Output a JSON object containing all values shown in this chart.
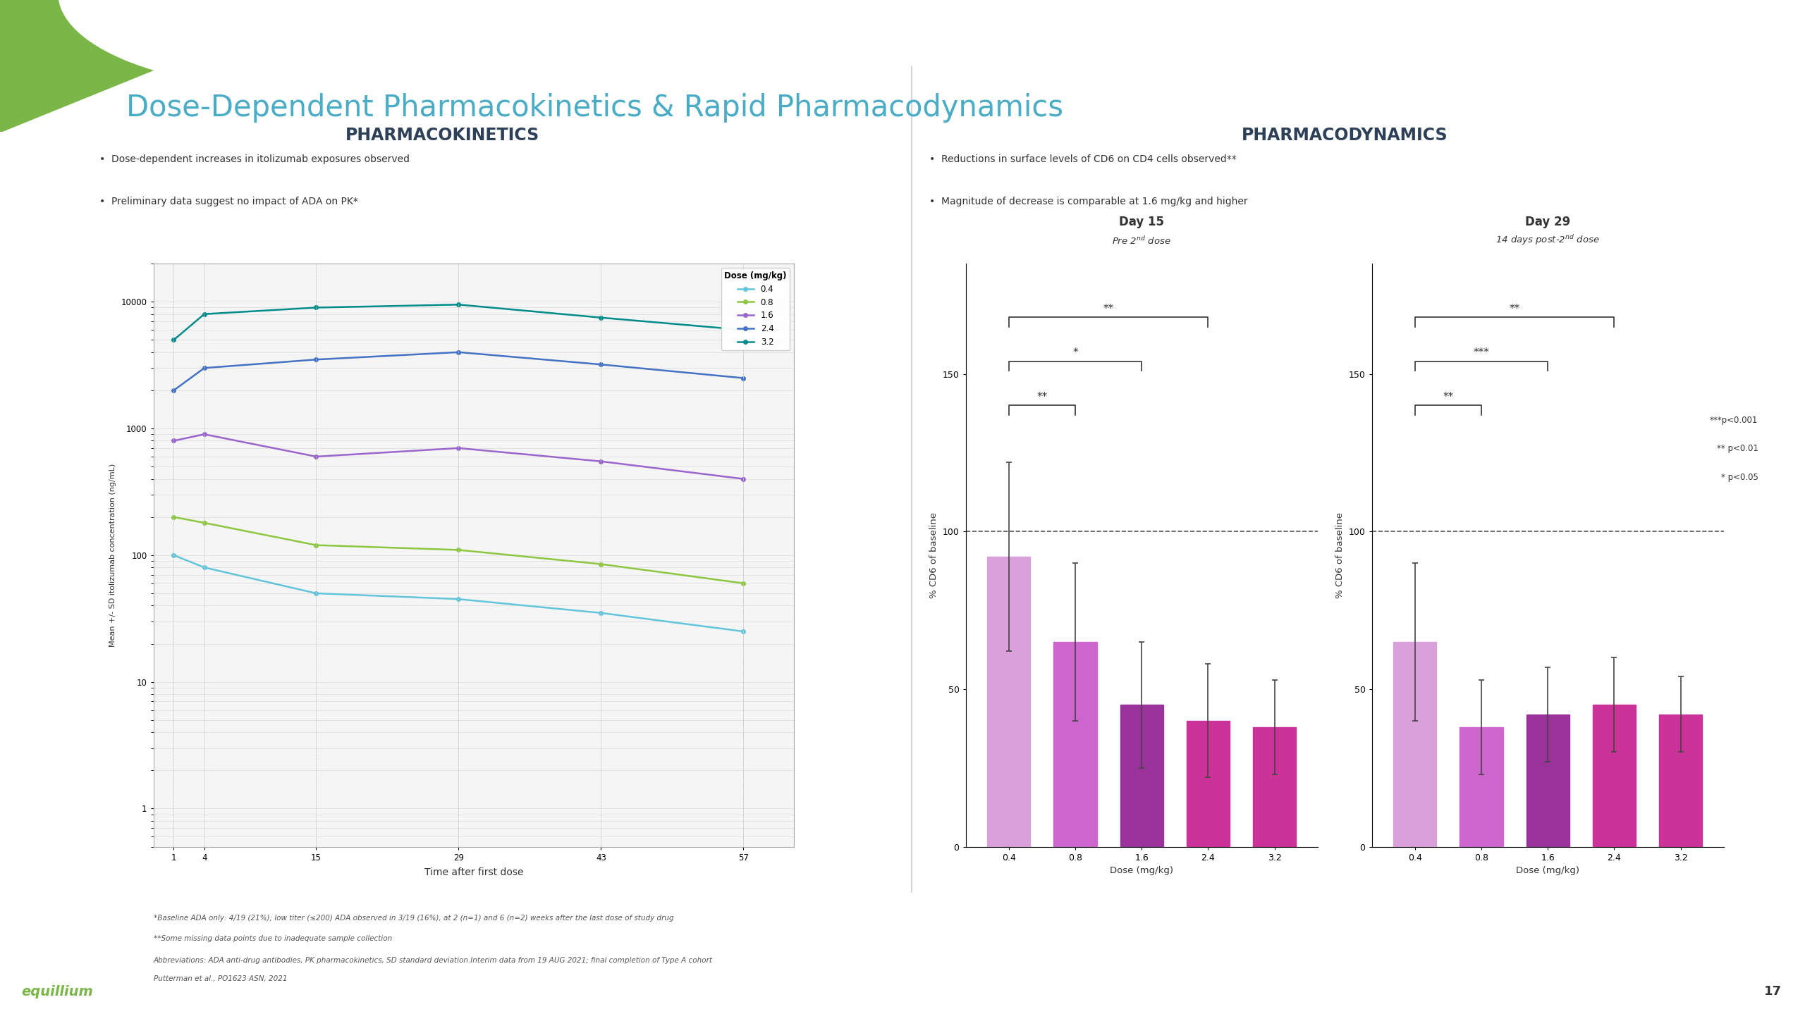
{
  "title": "Dose-Dependent Pharmacokinetics & Rapid Pharmacodynamics",
  "title_color": "#4BACC6",
  "bg_color": "#FFFFFF",
  "green_accent": "#7AB648",
  "pk_title": "PHARMACOKINETICS",
  "pd_title": "PHARMACODYNAMICS",
  "pk_bullets": [
    "Dose-dependent increases in itolizumab exposures observed",
    "Preliminary data suggest no impact of ADA on PK*"
  ],
  "pd_bullets": [
    "Reductions in surface levels of CD6 on CD4 cells observed**",
    "Magnitude of decrease is comparable at 1.6 mg/kg and higher"
  ],
  "pk_xlabel": "Time after first dose",
  "pk_ylabel": "Mean +/- SD itolizumab concentration (ng/mL)",
  "pk_legend_title": "Dose (mg/kg)",
  "pk_doses": [
    "0.4",
    "0.8",
    "1.6",
    "2.4",
    "3.2"
  ],
  "pk_line_colors": [
    "#63C5DA",
    "#8DC641",
    "#9966CC",
    "#4472C4",
    "#008B8B"
  ],
  "pk_timepoints": [
    1,
    4,
    15,
    29,
    43,
    57
  ],
  "pk_data": {
    "0.4": [
      100,
      80,
      50,
      45,
      35,
      25
    ],
    "0.8": [
      200,
      180,
      120,
      110,
      85,
      60
    ],
    "1.6": [
      800,
      900,
      600,
      700,
      550,
      400
    ],
    "2.4": [
      2000,
      3000,
      3500,
      4000,
      3200,
      2500
    ],
    "3.2": [
      5000,
      8000,
      9000,
      9500,
      7500,
      6000
    ]
  },
  "day15_bars": {
    "doses": [
      "0.4",
      "0.8",
      "1.6",
      "2.4",
      "3.2"
    ],
    "values": [
      92,
      65,
      45,
      40,
      38
    ],
    "errors": [
      30,
      25,
      20,
      18,
      15
    ],
    "colors": [
      "#D9A0D9",
      "#CC66CC",
      "#993399",
      "#CC3399",
      "#CC3399"
    ],
    "patterns": [
      "",
      "",
      "",
      "",
      "////"
    ]
  },
  "day29_bars": {
    "doses": [
      "0.4",
      "0.8",
      "1.6",
      "2.4",
      "3.2"
    ],
    "values": [
      65,
      38,
      42,
      45,
      42
    ],
    "errors": [
      25,
      15,
      15,
      15,
      12
    ],
    "colors": [
      "#D9A0D9",
      "#CC66CC",
      "#993399",
      "#CC3399",
      "#CC3399"
    ],
    "patterns": [
      "",
      "",
      "",
      "",
      "////"
    ]
  },
  "pd_xlabel": "Dose (mg/kg)",
  "pd_ylabel": "% CD6 of baseline",
  "day15_title": "Day 15",
  "day15_subtitle": "Pre 2nd dose",
  "day29_title": "Day 29",
  "day29_subtitle": "14 days post-2nd dose",
  "footnote1": "*Baseline ADA only: 4/19 (21%); low titer (≤200) ADA observed in 3/19 (16%), at 2 (n=1) and 6 (n=2) weeks after the last dose of study drug",
  "footnote2": "**Some missing data points due to inadequate sample collection",
  "footnote3": "Abbreviations: ADA anti-drug antibodies, PK pharmacokinetics, SD standard deviation.Interim data from 19 AUG 2021; final completion of Type A cohort",
  "footnote4": "Putterman et al., PO1623 ASN, 2021",
  "slide_number": "17"
}
